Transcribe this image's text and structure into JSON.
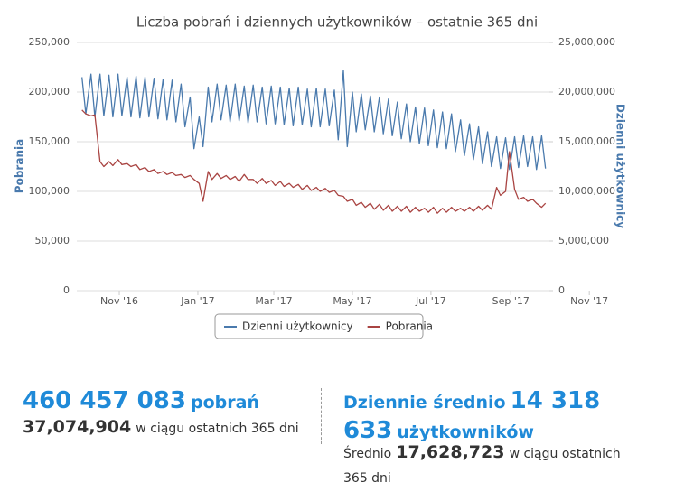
{
  "chart_data": {
    "type": "line",
    "title": "Liczba pobrań i dziennych użytkowników – ostatnie 365 dni",
    "ylabel": "Pobrania",
    "y2label": "Dzienni użytkownicy",
    "x": [
      2,
      5,
      9,
      12,
      16,
      19,
      23,
      26,
      30,
      33,
      37,
      40,
      44,
      47,
      51,
      54,
      58,
      61,
      65,
      68,
      72,
      75,
      79,
      82,
      86,
      89,
      93,
      96,
      100,
      103,
      107,
      110,
      114,
      117,
      121,
      124,
      128,
      131,
      135,
      138,
      142,
      145,
      149,
      152,
      156,
      159,
      163,
      166,
      170,
      173,
      177,
      180,
      184,
      187,
      191,
      194,
      198,
      201,
      205,
      208,
      212,
      215,
      219,
      222,
      226,
      229,
      233,
      236,
      240,
      243,
      247,
      250,
      254,
      257,
      261,
      264,
      268,
      271,
      275,
      278,
      282,
      285,
      289,
      292,
      296,
      299,
      303,
      306,
      310,
      313,
      317,
      320,
      324,
      327,
      331,
      334,
      338,
      341,
      345,
      348,
      352,
      355,
      359,
      362
    ],
    "xlim": [
      -2,
      365
    ],
    "xticks": [
      {
        "value": 31,
        "label": "Nov '16"
      },
      {
        "value": 92,
        "label": "Jan '17"
      },
      {
        "value": 151,
        "label": "Mar '17"
      },
      {
        "value": 212,
        "label": "May '17"
      },
      {
        "value": 273,
        "label": "Jul '17"
      },
      {
        "value": 335,
        "label": "Sep '17"
      },
      {
        "value": 396,
        "label": "Nov '17"
      }
    ],
    "ylim": [
      0,
      250000
    ],
    "yticks": [
      0,
      {
        "value": 50000,
        "label": "50,000"
      },
      {
        "value": 100000,
        "label": "100,000"
      },
      {
        "value": 150000,
        "label": "150,000"
      },
      {
        "value": 200000,
        "label": "200,000"
      },
      {
        "value": 250000,
        "label": "250,000"
      }
    ],
    "y2lim": [
      0,
      25000000
    ],
    "y2ticks": [
      0,
      {
        "value": 5000000,
        "label": "5,000,000"
      },
      {
        "value": 10000000,
        "label": "10,000,000"
      },
      {
        "value": 15000000,
        "label": "15,000,000"
      },
      {
        "value": 20000000,
        "label": "20,000,000"
      },
      {
        "value": 25000000,
        "label": "25,000,000"
      }
    ],
    "grid": true,
    "series": [
      {
        "name": "Dzienni użytkownicy",
        "color": "#4a7aad",
        "axis": "y2",
        "values": [
          21500000,
          17800000,
          21800000,
          17500000,
          21800000,
          17600000,
          21700000,
          17500000,
          21800000,
          17600000,
          21500000,
          17500000,
          21600000,
          17400000,
          21500000,
          17500000,
          21400000,
          17300000,
          21300000,
          17200000,
          21200000,
          17000000,
          20800000,
          16500000,
          19500000,
          14300000,
          17500000,
          14500000,
          20500000,
          17000000,
          20800000,
          17200000,
          20700000,
          17000000,
          20800000,
          17100000,
          20600000,
          16900000,
          20700000,
          17000000,
          20500000,
          16800000,
          20600000,
          16800000,
          20500000,
          16700000,
          20400000,
          16600000,
          20500000,
          16700000,
          20300000,
          16500000,
          20400000,
          16500000,
          20300000,
          16600000,
          20200000,
          15200000,
          22200000,
          14500000,
          20000000,
          16000000,
          19800000,
          16200000,
          19600000,
          16000000,
          19500000,
          15800000,
          19300000,
          15600000,
          19000000,
          15300000,
          18800000,
          15000000,
          18500000,
          14800000,
          18400000,
          14600000,
          18200000,
          14400000,
          18000000,
          14300000,
          17800000,
          14000000,
          17200000,
          13600000,
          16800000,
          13200000,
          16500000,
          12800000,
          16000000,
          12500000,
          15500000,
          12300000,
          15400000,
          12200000,
          15500000,
          12400000,
          15600000,
          12500000,
          15500000,
          12200000,
          15600000,
          12300000
        ]
      },
      {
        "name": "Pobrania",
        "color": "#a94442",
        "values": [
          182000,
          178000,
          176000,
          177000,
          130000,
          125000,
          130000,
          126000,
          132000,
          127000,
          128000,
          125000,
          127000,
          122000,
          124000,
          120000,
          122000,
          118000,
          120000,
          117000,
          119000,
          116000,
          117000,
          114000,
          116000,
          112000,
          108000,
          90000,
          120000,
          112000,
          118000,
          113000,
          116000,
          112000,
          115000,
          110000,
          117000,
          112000,
          112000,
          108000,
          113000,
          108000,
          111000,
          106000,
          110000,
          105000,
          108000,
          104000,
          107000,
          102000,
          106000,
          101000,
          104000,
          100000,
          103000,
          99000,
          101000,
          96000,
          95000,
          90000,
          92000,
          86000,
          89000,
          84000,
          88000,
          82000,
          87000,
          81000,
          86000,
          80000,
          85000,
          80000,
          85000,
          79000,
          84000,
          80000,
          83000,
          79000,
          84000,
          78000,
          83000,
          79000,
          84000,
          80000,
          83000,
          80000,
          84000,
          80000,
          85000,
          81000,
          86000,
          82000,
          104000,
          96000,
          100000,
          140000,
          102000,
          92000,
          94000,
          90000,
          92000,
          88000,
          84000,
          88000
        ]
      }
    ]
  },
  "stats": {
    "downloads_total": "460 457 083",
    "downloads_unit": "pobrań",
    "downloads_365": "37,074,904",
    "downloads_365_text": "w ciągu ostatnich 365 dni",
    "daily_prefix": "Dziennie średnio",
    "daily_avg": "14 318 633",
    "daily_unit": "użytkowników",
    "avg_prefix": "Średnio",
    "avg_365": "17,628,723",
    "avg_365_text": "w ciągu ostatnich 365 dni"
  }
}
